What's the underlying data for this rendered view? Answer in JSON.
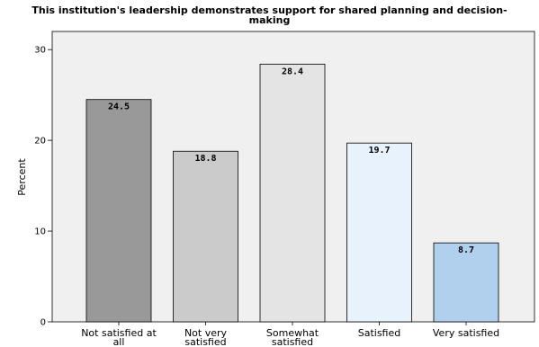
{
  "chart_data": {
    "type": "bar",
    "title_lines": [
      "This institution's leadership demonstrates support for shared planning and decision-",
      "making"
    ],
    "ylabel": "Percent",
    "xlabel": "",
    "ylim": [
      0,
      32
    ],
    "yticks": [
      0,
      10,
      20,
      30
    ],
    "grid": false,
    "categories": [
      [
        "Not satisfied at",
        "all"
      ],
      [
        "Not very",
        "satisfied"
      ],
      [
        "Somewhat",
        "satisfied"
      ],
      [
        "Satisfied"
      ],
      [
        "Very satisfied"
      ]
    ],
    "values": [
      24.5,
      18.8,
      28.4,
      19.7,
      8.7
    ],
    "value_labels": [
      "24.5",
      "18.8",
      "28.4",
      "19.7",
      "8.7"
    ],
    "colors": {
      "plot_background": "#f0f0f0",
      "bars": [
        "#999999",
        "#cbcbcb",
        "#e4e4e4",
        "#e8f2fd",
        "#b0d0ee"
      ],
      "bar_stroke": "#000000"
    }
  }
}
